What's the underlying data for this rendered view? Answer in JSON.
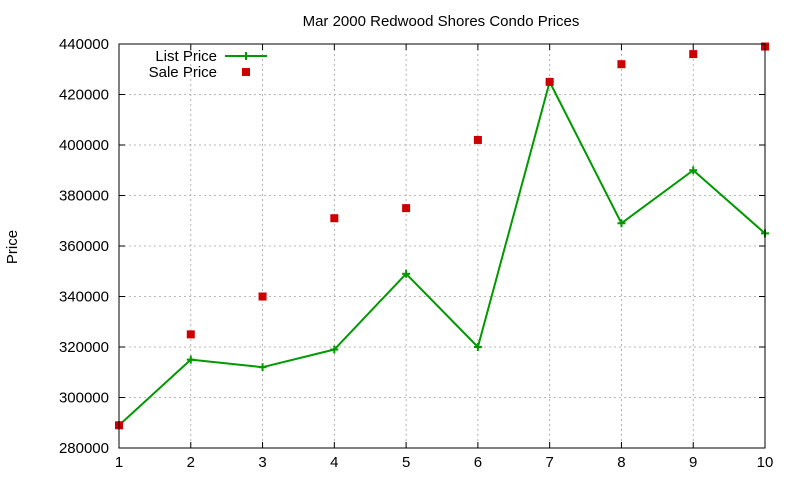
{
  "chart_data": {
    "type": "line",
    "title": "Mar 2000 Redwood Shores Condo Prices",
    "xlabel": "",
    "ylabel": "Price",
    "x": [
      1,
      2,
      3,
      4,
      5,
      6,
      7,
      8,
      9,
      10
    ],
    "xlim": [
      1,
      10
    ],
    "ylim": [
      280000,
      440000
    ],
    "xticks": [
      1,
      2,
      3,
      4,
      5,
      6,
      7,
      8,
      9,
      10
    ],
    "yticks": [
      280000,
      300000,
      320000,
      340000,
      360000,
      380000,
      400000,
      420000,
      440000
    ],
    "grid": true,
    "legend_position": "top-left",
    "series": [
      {
        "name": "List Price",
        "style": "linespoints",
        "marker": "plus",
        "color": "#009900",
        "x": [
          1,
          2,
          3,
          4,
          5,
          6,
          7,
          8,
          9,
          10
        ],
        "values": [
          289000,
          315000,
          312000,
          319000,
          349000,
          320000,
          425000,
          369000,
          390000,
          365000
        ]
      },
      {
        "name": "Sale Price",
        "style": "points",
        "marker": "square",
        "color": "#cc0000",
        "x": [
          1,
          2,
          3,
          4,
          5,
          6,
          7,
          8,
          9,
          10
        ],
        "values": [
          289000,
          325000,
          340000,
          371000,
          375000,
          402000,
          425000,
          432000,
          436000,
          439000
        ]
      }
    ]
  }
}
